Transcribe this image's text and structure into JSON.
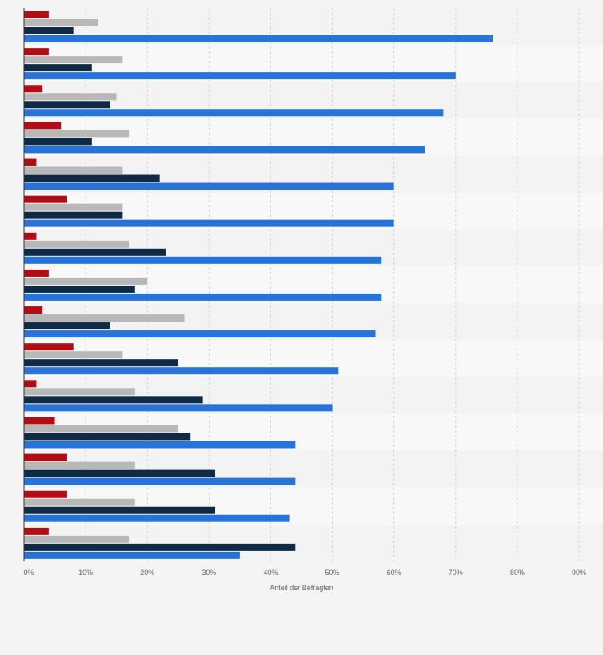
{
  "chart_data": {
    "type": "bar",
    "orientation": "horizontal",
    "xlabel": "Anteil der Befragten",
    "xlim": [
      0,
      90
    ],
    "x_ticks": [
      "0%",
      "10%",
      "20%",
      "30%",
      "40%",
      "50%",
      "60%",
      "70%",
      "80%",
      "90%"
    ],
    "grid": "vertical dashed",
    "category_count": 15,
    "series": [
      {
        "color": "#b00d14",
        "values": [
          4,
          4,
          3,
          6,
          2,
          7,
          2,
          4,
          3,
          8,
          2,
          5,
          7,
          7,
          4
        ]
      },
      {
        "color": "#b8b8b8",
        "values": [
          12,
          16,
          15,
          17,
          16,
          16,
          17,
          20,
          26,
          16,
          18,
          25,
          18,
          18,
          17
        ]
      },
      {
        "color": "#0f2a44",
        "values": [
          8,
          11,
          14,
          11,
          22,
          16,
          23,
          18,
          14,
          25,
          29,
          27,
          31,
          31,
          44
        ]
      },
      {
        "color": "#2873d8",
        "values": [
          76,
          70,
          68,
          65,
          60,
          60,
          58,
          58,
          57,
          51,
          50,
          44,
          44,
          43,
          35
        ]
      }
    ]
  }
}
